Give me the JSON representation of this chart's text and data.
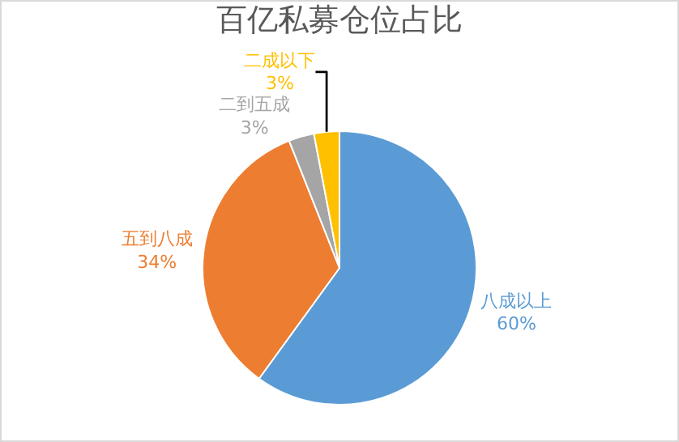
{
  "chart_data": {
    "type": "pie",
    "title": "百亿私募仓位占比",
    "categories": [
      "八成以上",
      "五到八成",
      "二到五成",
      "二成以下"
    ],
    "values": [
      60,
      34,
      3,
      3
    ],
    "value_labels": [
      "60%",
      "34%",
      "3%",
      "3%"
    ],
    "colors": [
      "#5b9bd5",
      "#ed7d31",
      "#a5a5a5",
      "#ffc000"
    ],
    "legend": false
  }
}
